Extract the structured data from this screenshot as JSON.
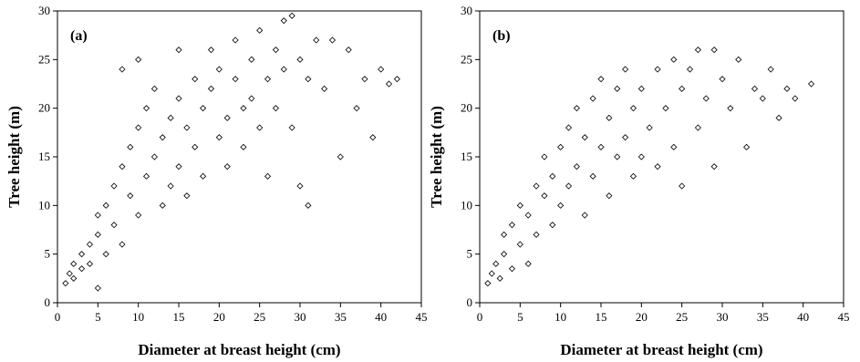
{
  "chart_data": [
    {
      "type": "scatter",
      "panel_label": "(a)",
      "xlabel": "Diameter at breast height (cm)",
      "ylabel": "Tree height (m)",
      "color": "#000000",
      "marker": "diamond",
      "xlim": [
        0,
        45
      ],
      "ylim": [
        0,
        30
      ],
      "xticks": [
        0,
        5,
        10,
        15,
        20,
        25,
        30,
        35,
        40,
        45
      ],
      "yticks": [
        0,
        5,
        10,
        15,
        20,
        25,
        30
      ],
      "x": [
        1,
        1.5,
        2,
        2,
        3,
        3,
        4,
        4,
        5,
        5,
        5,
        6,
        6,
        7,
        7,
        8,
        8,
        8,
        9,
        9,
        10,
        10,
        10,
        11,
        11,
        12,
        12,
        13,
        13,
        14,
        14,
        15,
        15,
        15,
        16,
        16,
        17,
        17,
        18,
        18,
        19,
        19,
        20,
        20,
        21,
        21,
        22,
        22,
        23,
        23,
        24,
        24,
        25,
        25,
        26,
        26,
        27,
        27,
        28,
        28,
        29,
        29,
        30,
        30,
        31,
        31,
        32,
        33,
        34,
        35,
        36,
        37,
        38,
        39,
        40,
        41,
        42
      ],
      "y": [
        2,
        3,
        4,
        2.5,
        5,
        3.5,
        6,
        4,
        7,
        1.5,
        9,
        10,
        5,
        12,
        8,
        14,
        6,
        24,
        16,
        11,
        18,
        9,
        25,
        20,
        13,
        15,
        22,
        17,
        10,
        19,
        12,
        21,
        14,
        26,
        18,
        11,
        23,
        16,
        20,
        13,
        22,
        26,
        17,
        24,
        19,
        14,
        23,
        27,
        20,
        16,
        25,
        21,
        18,
        28,
        23,
        13,
        26,
        20,
        24,
        29,
        29.5,
        18,
        25,
        12,
        23,
        10,
        27,
        22,
        27,
        15,
        26,
        20,
        23,
        17,
        24,
        22.5,
        23
      ]
    },
    {
      "type": "scatter",
      "panel_label": "(b)",
      "xlabel": "Diameter at breast height (cm)",
      "ylabel": "Tree height (m)",
      "color": "#000000",
      "marker": "diamond",
      "xlim": [
        0,
        45
      ],
      "ylim": [
        0,
        30
      ],
      "xticks": [
        0,
        5,
        10,
        15,
        20,
        25,
        30,
        35,
        40,
        45
      ],
      "yticks": [
        0,
        5,
        10,
        15,
        20,
        25,
        30
      ],
      "x": [
        1,
        1.5,
        2,
        2.5,
        3,
        3,
        4,
        4,
        5,
        5,
        6,
        6,
        7,
        7,
        8,
        8,
        9,
        9,
        10,
        10,
        11,
        11,
        12,
        12,
        13,
        13,
        14,
        14,
        15,
        15,
        16,
        16,
        17,
        17,
        18,
        18,
        19,
        19,
        20,
        20,
        21,
        22,
        22,
        23,
        24,
        24,
        25,
        25,
        26,
        27,
        27,
        28,
        29,
        29,
        30,
        31,
        32,
        33,
        34,
        35,
        36,
        37,
        38,
        39,
        41
      ],
      "y": [
        2,
        3,
        4,
        2.5,
        5,
        7,
        3.5,
        8,
        6,
        10,
        9,
        4,
        12,
        7,
        11,
        15,
        13,
        8,
        16,
        10,
        18,
        12,
        14,
        20,
        17,
        9,
        21,
        13,
        16,
        23,
        19,
        11,
        22,
        15,
        24,
        17,
        20,
        13,
        22,
        15,
        18,
        24,
        14,
        20,
        25,
        16,
        22,
        12,
        24,
        18,
        26,
        21,
        26,
        14,
        23,
        20,
        25,
        16,
        22,
        21,
        24,
        19,
        22,
        21,
        22.5
      ]
    }
  ]
}
